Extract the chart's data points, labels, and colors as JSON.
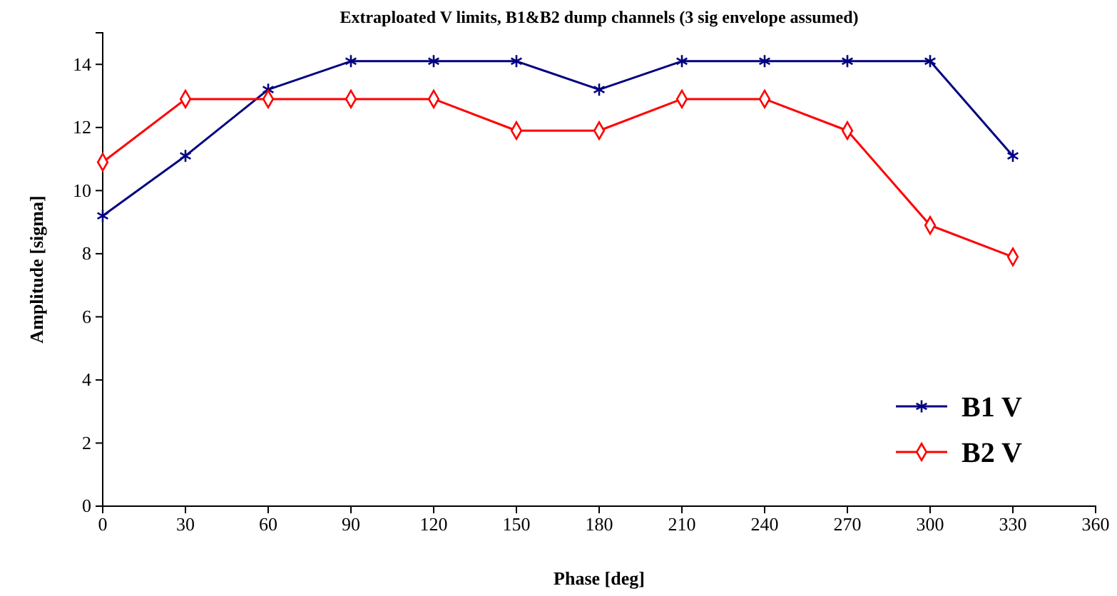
{
  "chart_data": {
    "type": "line",
    "title": "Extraploated V limits, B1&B2 dump channels (3 sig envelope assumed)",
    "xlabel": "Phase [deg]",
    "ylabel": "Amplitude [sigma]",
    "x": [
      0,
      30,
      60,
      90,
      120,
      150,
      180,
      210,
      240,
      270,
      300,
      330
    ],
    "series": [
      {
        "name": "B1 V",
        "color": "#000080",
        "marker": "cross",
        "values": [
          9.2,
          11.1,
          13.2,
          14.1,
          14.1,
          14.1,
          13.2,
          14.1,
          14.1,
          14.1,
          14.1,
          11.1
        ]
      },
      {
        "name": "B2 V",
        "color": "#ff0000",
        "marker": "diamond",
        "values": [
          10.9,
          12.9,
          12.9,
          12.9,
          12.9,
          11.9,
          11.9,
          12.9,
          12.9,
          11.9,
          8.9,
          7.9
        ]
      }
    ],
    "xlim": [
      0,
      360
    ],
    "xticks": [
      0,
      30,
      60,
      90,
      120,
      150,
      180,
      210,
      240,
      270,
      300,
      330,
      360
    ],
    "ylim": [
      0,
      15
    ],
    "yticks": [
      0,
      2,
      4,
      6,
      8,
      10,
      12,
      14
    ],
    "grid": false,
    "legend": "bottom right",
    "line_style": "solid"
  }
}
